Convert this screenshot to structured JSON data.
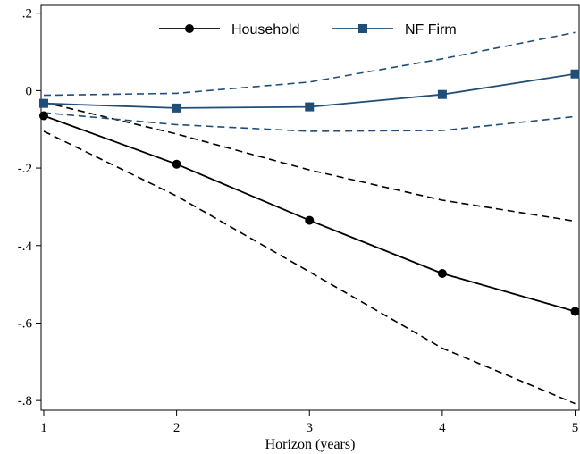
{
  "chart_data": {
    "type": "line",
    "xlabel": "Horizon (years)",
    "ylabel": "",
    "x": [
      1,
      2,
      3,
      4,
      5
    ],
    "xlim": [
      0.98,
      5.03
    ],
    "ylim": [
      -0.825,
      0.22
    ],
    "xticks": [
      1,
      2,
      3,
      4,
      5
    ],
    "xtick_labels": [
      "1",
      "2",
      "3",
      "4",
      "5"
    ],
    "yticks": [
      0.2,
      0,
      -0.2,
      -0.4,
      -0.6,
      -0.8
    ],
    "ytick_labels": [
      ".2",
      "0",
      "-.2",
      "-.4",
      "-.6",
      "-.8"
    ],
    "grid": false,
    "legend": {
      "position": "top",
      "entries": [
        "Household",
        "NF Firm"
      ]
    },
    "series": [
      {
        "name": "Household",
        "color": "#000000",
        "marker": "circle",
        "values": [
          -0.065,
          -0.19,
          -0.335,
          -0.472,
          -0.57
        ],
        "ci_lower": [
          -0.105,
          -0.272,
          -0.468,
          -0.665,
          -0.808
        ],
        "ci_upper": [
          -0.03,
          -0.112,
          -0.205,
          -0.283,
          -0.337
        ]
      },
      {
        "name": "NF Firm",
        "color": "#1f4e79",
        "marker": "square",
        "values": [
          -0.033,
          -0.045,
          -0.042,
          -0.01,
          0.043
        ],
        "ci_lower": [
          -0.057,
          -0.088,
          -0.105,
          -0.103,
          -0.067
        ],
        "ci_upper": [
          -0.012,
          -0.007,
          0.022,
          0.082,
          0.15
        ]
      }
    ]
  }
}
